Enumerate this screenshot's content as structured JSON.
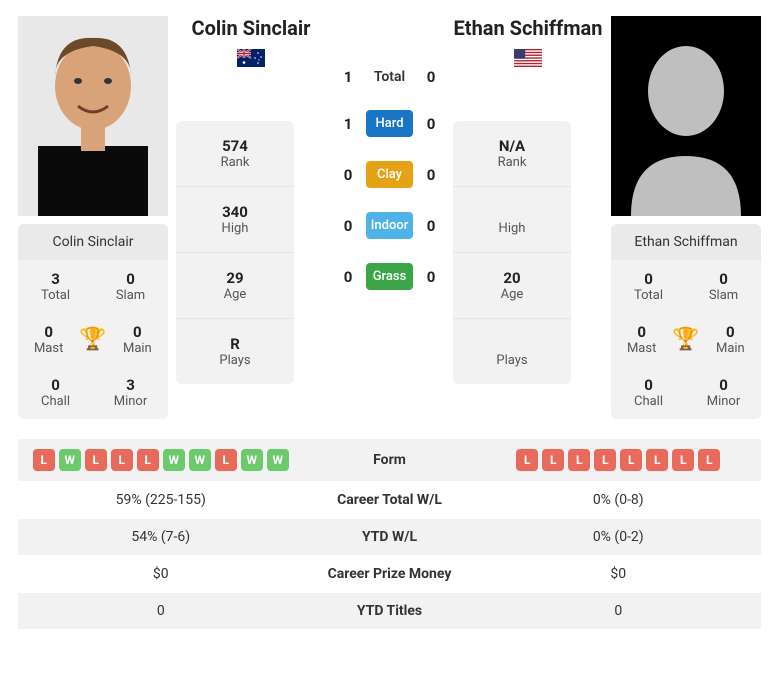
{
  "player1": {
    "name": "Colin Sinclair",
    "country": "AU",
    "photo": "face",
    "rank": "574",
    "high": "340",
    "age": "29",
    "plays": "R",
    "titles": {
      "total": "3",
      "slam": "0",
      "mast": "0",
      "main": "0",
      "chall": "0",
      "minor": "3"
    },
    "form": [
      "L",
      "W",
      "L",
      "L",
      "L",
      "W",
      "W",
      "L",
      "W",
      "W"
    ],
    "career_wl": "59% (225-155)",
    "ytd_wl": "54% (7-6)",
    "prize": "$0",
    "ytd_titles": "0"
  },
  "player2": {
    "name": "Ethan Schiffman",
    "country": "US",
    "photo": "silhouette",
    "rank": "N/A",
    "high": "",
    "age": "20",
    "plays": "",
    "titles": {
      "total": "0",
      "slam": "0",
      "mast": "0",
      "main": "0",
      "chall": "0",
      "minor": "0"
    },
    "form": [
      "L",
      "L",
      "L",
      "L",
      "L",
      "L",
      "L",
      "L"
    ],
    "career_wl": "0% (0-8)",
    "ytd_wl": "0% (0-2)",
    "prize": "$0",
    "ytd_titles": "0"
  },
  "h2h": {
    "total": {
      "label": "Total",
      "p1": "1",
      "p2": "0"
    },
    "surfaces": [
      {
        "label": "Hard",
        "class": "surface-hard",
        "p1": "1",
        "p2": "0"
      },
      {
        "label": "Clay",
        "class": "surface-clay",
        "p1": "0",
        "p2": "0"
      },
      {
        "label": "Indoor",
        "class": "surface-indoor",
        "p1": "0",
        "p2": "0"
      },
      {
        "label": "Grass",
        "class": "surface-grass",
        "p1": "0",
        "p2": "0"
      }
    ]
  },
  "labels": {
    "rank": "Rank",
    "high": "High",
    "age": "Age",
    "plays": "Plays",
    "total": "Total",
    "slam": "Slam",
    "mast": "Mast",
    "main": "Main",
    "chall": "Chall",
    "minor": "Minor",
    "form": "Form",
    "career_wl": "Career Total W/L",
    "ytd_wl": "YTD W/L",
    "prize": "Career Prize Money",
    "ytd_titles": "YTD Titles"
  },
  "colors": {
    "chip_W": "#6cc96c",
    "chip_L": "#e86a5a",
    "hard": "#1976c5",
    "clay": "#e5a217",
    "indoor": "#4fb3e8",
    "grass": "#3ba648"
  }
}
